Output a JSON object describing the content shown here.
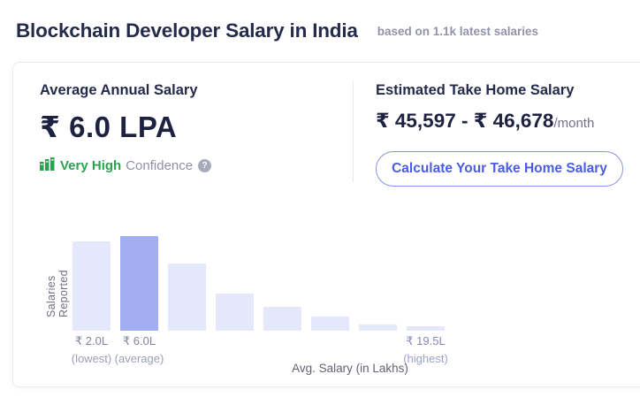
{
  "header": {
    "title": "Blockchain Developer Salary in India",
    "subtitle": "based on 1.1k latest salaries"
  },
  "card": {
    "average": {
      "label": "Average Annual Salary",
      "value": "₹ 6.0 LPA",
      "confidence_level": "Very High",
      "confidence_label": "Confidence",
      "help_glyph": "?"
    },
    "take_home": {
      "label": "Estimated Take Home Salary",
      "value": "₹ 45,597 - ₹ 46,678",
      "period": "/month",
      "button_label": "Calculate Your Take Home Salary"
    }
  },
  "chart_data": {
    "type": "bar",
    "title": "Salary distribution histogram",
    "xlabel": "Avg. Salary (in Lakhs)",
    "ylabel": "Salaries Reported",
    "y_units": "relative (axis unlabeled)",
    "values": [
      101,
      107,
      76,
      42,
      27,
      16,
      7,
      5
    ],
    "highlighted_index": 1,
    "x_range_lakhs": [
      2.0,
      19.5
    ],
    "annotations": [
      {
        "bar_index": 0,
        "value": "₹ 2.0L",
        "tag": "(lowest)",
        "value_color": "#7d84a0",
        "tag_color": "#99a0b5"
      },
      {
        "bar_index": 1,
        "value": "₹ 6.0L",
        "tag": "(average)",
        "value_color": "#7d84a0",
        "tag_color": "#99a0b5"
      },
      {
        "bar_index": 7,
        "value": "₹ 19.5L",
        "tag": "(highest)",
        "value_color": "#8289bd",
        "tag_color": "#9aa1cd"
      }
    ],
    "legend": false,
    "grid": false
  },
  "colors": {
    "accent_green": "#2aa350",
    "button_text": "#4a5ce4",
    "button_border": "#8b93e8",
    "bar": "#e5e8fa",
    "bar_highlight": "#a3adf2",
    "heading": "#242b4a",
    "value_dark": "#1c2240",
    "muted": "#8f94a8"
  }
}
